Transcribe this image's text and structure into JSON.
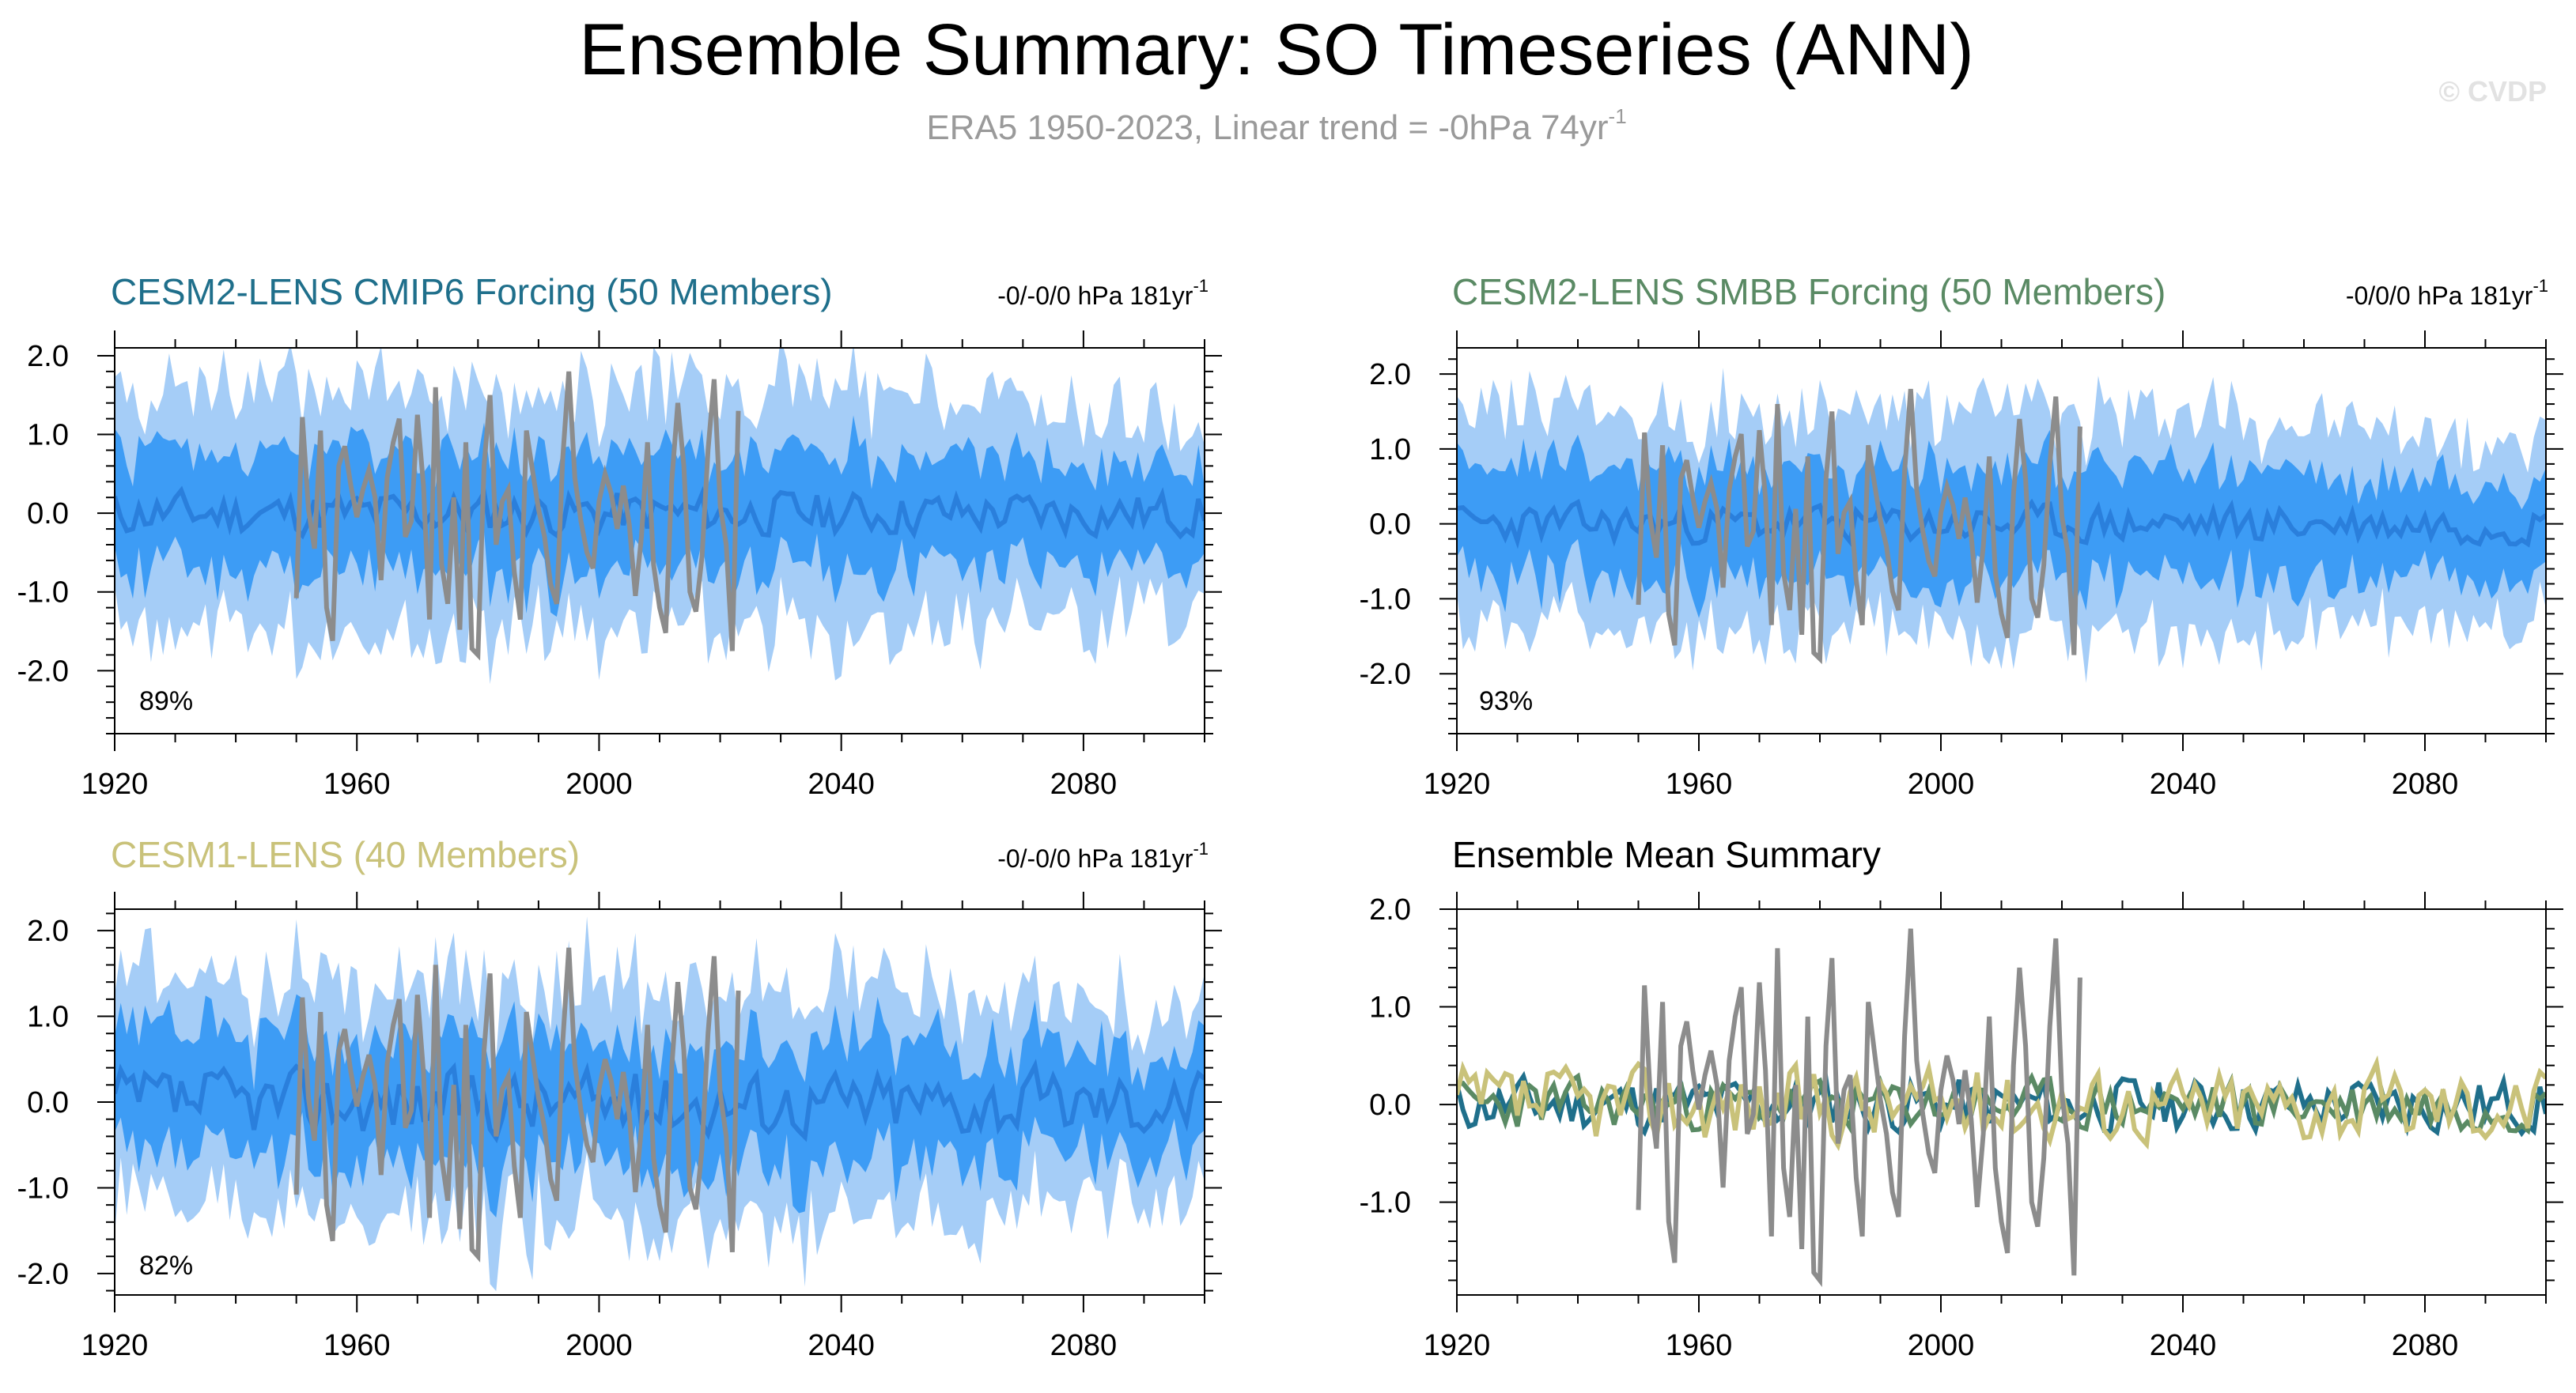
{
  "figure": {
    "title": "Ensemble Summary: SO Timeseries (ANN)",
    "subtitle_text": "ERA5 1950-2023, Linear trend = -0hPa 74yr",
    "subtitle_sup": "-1",
    "credit": "© CVDP"
  },
  "colors": {
    "band_outer": "#a5cdf7",
    "band_inner": "#3d9cf5",
    "mean_line": "#2a7fdc",
    "obs_line": "#8c8c8c",
    "cmip6": "#1f6f8b",
    "smbb": "#5a8a64",
    "cesm1": "#c9c27a",
    "axis": "#000000"
  },
  "chart_data": [
    {
      "id": "cmip6",
      "type": "area",
      "title": "CESM2-LENS CMIP6 Forcing (50 Members)",
      "title_color": "#1f6f8b",
      "trend_text": "-0/-0/0 hPa 181yr",
      "trend_sup": "-1",
      "percent_label": "89%",
      "xlim": [
        1920,
        2100
      ],
      "ylim": [
        -2.8,
        2.1
      ],
      "xticks": [
        1920,
        1960,
        2000,
        2040,
        2080
      ],
      "xtick_labels": [
        "1920",
        "1960",
        "2000",
        "2040",
        "2080"
      ],
      "yticks": [
        -2,
        -1,
        0,
        1,
        2
      ],
      "ytick_labels": [
        "-2.0",
        "-1.0",
        "0.0",
        "1.0",
        "2.0"
      ],
      "ensemble_mean_amplitude": 0.22,
      "band_inner_halfwidth": 0.8,
      "band_outer_halfwidth": 1.6,
      "seed": 11
    },
    {
      "id": "smbb",
      "type": "area",
      "title": "CESM2-LENS SMBB Forcing (50 Members)",
      "title_color": "#5a8a64",
      "trend_text": "-0/0/0 hPa 181yr",
      "trend_sup": "-1",
      "percent_label": "93%",
      "xlim": [
        1920,
        2100
      ],
      "ylim": [
        -2.8,
        2.35
      ],
      "xticks": [
        1920,
        1960,
        2000,
        2040,
        2080
      ],
      "xtick_labels": [
        "1920",
        "1960",
        "2000",
        "2040",
        "2080"
      ],
      "yticks": [
        -2,
        -1,
        0,
        1,
        2
      ],
      "ytick_labels": [
        "-2.0",
        "-1.0",
        "0.0",
        "1.0",
        "2.0"
      ],
      "ensemble_mean_amplitude": 0.2,
      "band_inner_halfwidth": 0.8,
      "band_outer_halfwidth": 1.55,
      "seed": 23
    },
    {
      "id": "cesm1",
      "type": "area",
      "title": "CESM1-LENS (40 Members)",
      "title_color": "#c9c27a",
      "trend_text": "-0/-0/0 hPa 181yr",
      "trend_sup": "-1",
      "percent_label": "82%",
      "xlim": [
        1920,
        2100
      ],
      "ylim": [
        -2.25,
        2.25
      ],
      "xticks": [
        1920,
        1960,
        2000,
        2040,
        2080
      ],
      "xtick_labels": [
        "1920",
        "1960",
        "2000",
        "2040",
        "2080"
      ],
      "yticks": [
        -2,
        -1,
        0,
        1,
        2
      ],
      "ytick_labels": [
        "-2.0",
        "-1.0",
        "0.0",
        "1.0",
        "2.0"
      ],
      "ensemble_mean_amplitude": 0.3,
      "band_inner_halfwidth": 0.75,
      "band_outer_halfwidth": 1.45,
      "seed": 37
    },
    {
      "id": "ensmean",
      "type": "line",
      "title": "Ensemble Mean Summary",
      "title_color": "#000000",
      "xlim": [
        1920,
        2100
      ],
      "ylim": [
        -1.95,
        2.0
      ],
      "xticks": [
        1920,
        1960,
        2000,
        2040,
        2080
      ],
      "xtick_labels": [
        "1920",
        "1960",
        "2000",
        "2040",
        "2080"
      ],
      "yticks": [
        -1,
        0,
        1,
        2
      ],
      "ytick_labels": [
        "-1.0",
        "0.0",
        "1.0",
        "2.0"
      ],
      "series": [
        {
          "name": "CESM2-LENS CMIP6 Forcing",
          "color": "#1f6f8b",
          "seed": 11,
          "amplitude": 0.22
        },
        {
          "name": "CESM2-LENS SMBB Forcing",
          "color": "#5a8a64",
          "seed": 23,
          "amplitude": 0.2
        },
        {
          "name": "CESM1-LENS",
          "color": "#c9c27a",
          "seed": 37,
          "amplitude": 0.3
        },
        {
          "name": "ERA5",
          "color": "#8c8c8c",
          "observed": true
        }
      ]
    }
  ],
  "observations": {
    "name": "ERA5",
    "years": [
      1950,
      1951,
      1952,
      1953,
      1954,
      1955,
      1956,
      1957,
      1958,
      1959,
      1960,
      1961,
      1962,
      1963,
      1964,
      1965,
      1966,
      1967,
      1968,
      1969,
      1970,
      1971,
      1972,
      1973,
      1974,
      1975,
      1976,
      1977,
      1978,
      1979,
      1980,
      1981,
      1982,
      1983,
      1984,
      1985,
      1986,
      1987,
      1988,
      1989,
      1990,
      1991,
      1992,
      1993,
      1994,
      1995,
      1996,
      1997,
      1998,
      1999,
      2000,
      2001,
      2002,
      2003,
      2004,
      2005,
      2006,
      2007,
      2008,
      2009,
      2010,
      2011,
      2012,
      2013,
      2014,
      2015,
      2016,
      2017,
      2018,
      2019,
      2020,
      2021,
      2022,
      2023
    ],
    "values": [
      -1.08,
      1.22,
      0.05,
      -0.45,
      1.05,
      -1.2,
      -1.62,
      0.6,
      0.85,
      0.35,
      -0.05,
      0.3,
      0.55,
      0.2,
      -0.85,
      0.45,
      0.9,
      1.2,
      -0.3,
      -0.1,
      1.25,
      0.35,
      -1.35,
      1.6,
      -0.65,
      -1.15,
      0.2,
      -1.48,
      0.9,
      -1.72,
      -1.8,
      0.6,
      1.5,
      -0.4,
      0.15,
      0.3,
      -0.75,
      -1.35,
      1.05,
      0.55,
      0.05,
      -0.3,
      -0.9,
      -1.15,
      0.7,
      1.8,
      0.45,
      -0.1,
      -0.5,
      -0.7,
      0.15,
      0.5,
      0.25,
      -0.2,
      0.35,
      -0.15,
      -1.05,
      -0.3,
      0.9,
      -0.65,
      -1.2,
      -1.52,
      0.4,
      1.4,
      0.6,
      -1.0,
      -1.25,
      -0.55,
      0.8,
      1.7,
      0.1,
      -0.4,
      -1.75,
      1.3
    ]
  }
}
